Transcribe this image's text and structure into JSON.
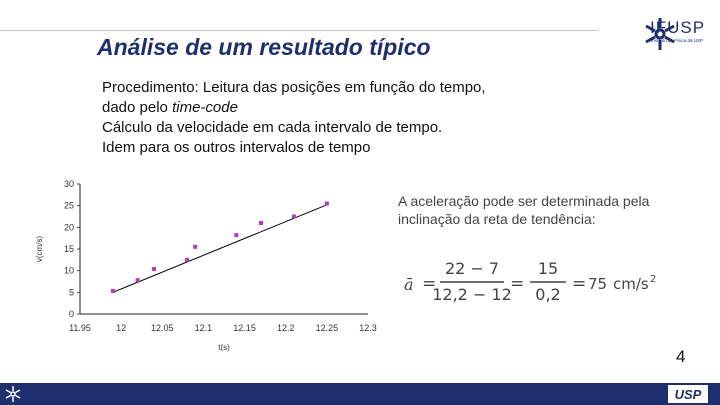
{
  "header": {
    "title": "Análise de um resultado típico",
    "logo_text": "IFUSP",
    "logo_subtitle": "Instituto de Física da USP"
  },
  "procedure": {
    "line1": "Procedimento:  Leitura das posições em função do tempo,",
    "line2_prefix": "dado pelo ",
    "line2_italic": "time-code",
    "line3": "Cálculo da velocidade em cada intervalo de tempo.",
    "line4": "Idem para os outros intervalos de tempo"
  },
  "note": {
    "text": "A aceleração pode ser determinada pela inclinação da reta de tendência:"
  },
  "formula": {
    "lhs": "ā",
    "num1": "22 − 7",
    "den1": "12,2 − 12",
    "num2": "15",
    "den2": "0,2",
    "result": "75",
    "unit": "cm/s",
    "unit_exp": "2"
  },
  "page_number": "4",
  "footer": {
    "usp_logo_text": "USP"
  },
  "colors": {
    "title": "#1f2f6e",
    "marker": "#b43cb4",
    "trend_line": "#000000",
    "footer_bar": "#1f2f6e"
  },
  "chart_data": {
    "type": "scatter",
    "xlabel": "t(s)",
    "ylabel": "v(cm/s)",
    "xlim": [
      11.95,
      12.3
    ],
    "ylim": [
      0,
      30
    ],
    "x_ticks": [
      "11.95",
      "12",
      "12.05",
      "12.1",
      "12.15",
      "12.2",
      "12.25",
      "12.3"
    ],
    "y_ticks": [
      "0",
      "5",
      "10",
      "15",
      "20",
      "25",
      "30"
    ],
    "grid": false,
    "series": [
      {
        "marker": "square",
        "points": [
          {
            "x": 11.99,
            "y": 5.3
          },
          {
            "x": 12.02,
            "y": 7.8
          },
          {
            "x": 12.04,
            "y": 10.4
          },
          {
            "x": 12.08,
            "y": 12.5
          },
          {
            "x": 12.09,
            "y": 15.5
          },
          {
            "x": 12.14,
            "y": 18.2
          },
          {
            "x": 12.17,
            "y": 21.0
          },
          {
            "x": 12.21,
            "y": 22.5
          },
          {
            "x": 12.25,
            "y": 25.5
          }
        ]
      }
    ],
    "trend_line": {
      "x": [
        11.99,
        12.25
      ],
      "y": [
        5.0,
        25.2
      ]
    }
  }
}
